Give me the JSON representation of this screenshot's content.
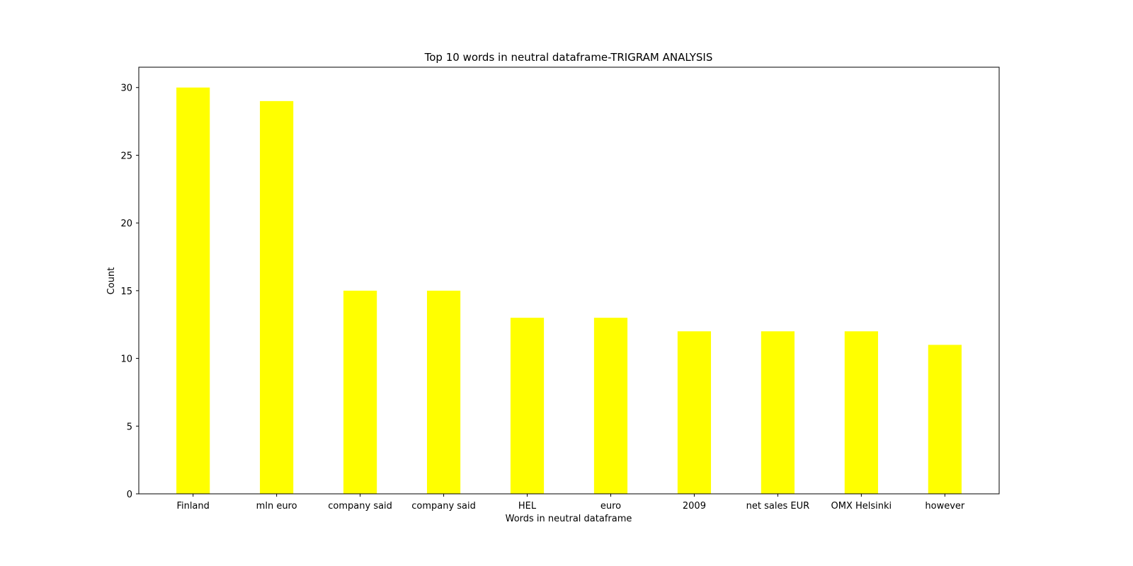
{
  "chart_data": {
    "type": "bar",
    "title": "Top 10 words in neutral dataframe-TRIGRAM ANALYSIS",
    "xlabel": "Words in neutral dataframe",
    "ylabel": "Count",
    "categories": [
      "Finland",
      "mln euro",
      "company said",
      "company said",
      "HEL",
      "euro",
      "2009",
      "net sales EUR",
      "OMX Helsinki",
      "however"
    ],
    "values": [
      30,
      29,
      15,
      15,
      13,
      13,
      12,
      12,
      12,
      11
    ],
    "ylim": [
      0,
      31.5
    ],
    "yticks": [
      0,
      5,
      10,
      15,
      20,
      25,
      30
    ],
    "grid": false,
    "bar_color": "#ffff00"
  }
}
